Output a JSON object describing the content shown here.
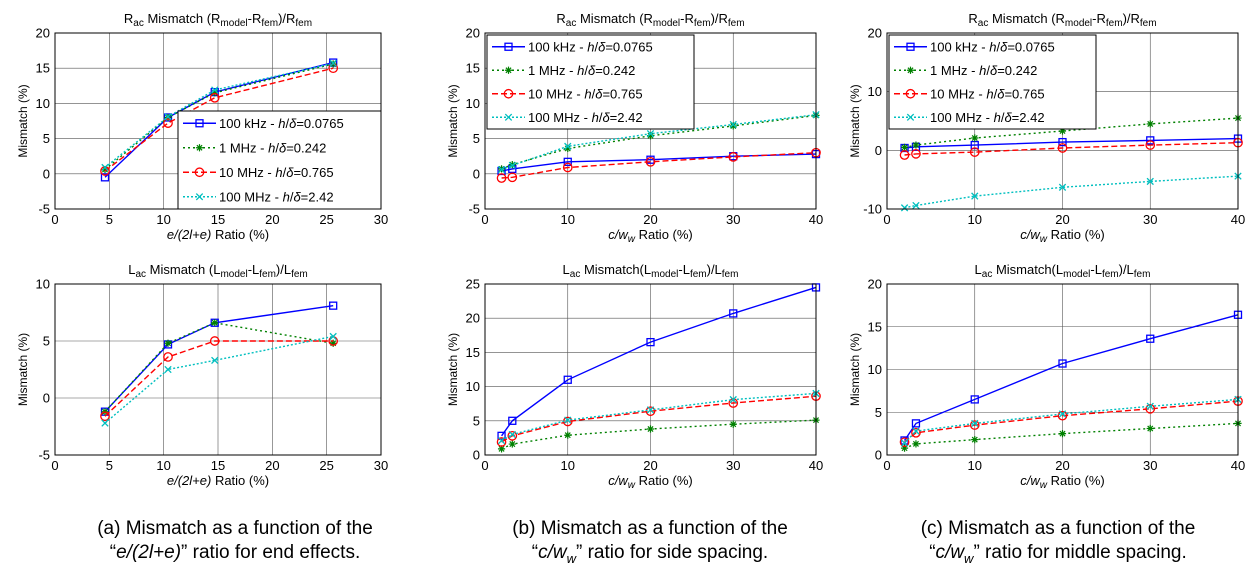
{
  "series_names": [
    "100 kHz",
    "1 MHz",
    "10 MHz",
    "100 MHz"
  ],
  "series_params": [
    "=0.0765",
    "=0.242",
    "=0.765",
    "=2.42"
  ],
  "legend_prefix": "- ",
  "legend_h": "h",
  "legend_slash": "/",
  "legend_delta": "δ",
  "series_colors": [
    "#0000ff",
    "#008000",
    "#ff0000",
    "#00bfbf"
  ],
  "series_markers": [
    "square",
    "star",
    "circle",
    "x"
  ],
  "series_dashes": [
    "",
    "2,3",
    "6,3",
    "2,2"
  ],
  "titles": {
    "r_main": "R",
    "r_sub1": "ac",
    "r_mid": " Mismatch (R",
    "r_sub2": "model",
    "r_sep": "-R",
    "r_sub3": "fem",
    "r_tail": ")/R",
    "r_sub4": "fem",
    "l_main": "L",
    "l_sub1": "ac",
    "l_mid_a": " Mismatch (L",
    "l_mid_bc": " Mismatch(L",
    "l_sub2": "model",
    "l_sep": "-L",
    "l_sub3": "fem",
    "l_tail": ")/L",
    "l_sub4": "fem"
  },
  "ylabel": "Mismatch (%)",
  "xlabel_a_italic": "e/(2l+e)",
  "xlabel_a_tail": " Ratio (%)",
  "xlabel_bc_c": "c/w",
  "xlabel_bc_sub": "w",
  "xlabel_bc_tail": " Ratio (%)",
  "captions": {
    "a": {
      "line1": "(a) Mismatch as a function of the",
      "line2_pre": "“",
      "line2_italic": "e/(2l+e)",
      "line2_post": "” ratio for end effects."
    },
    "b": {
      "line1": "(b) Mismatch as a function of the",
      "line2_pre": "“",
      "line2_italic": "c/w",
      "line2_sub": "w",
      "line2_post": "” ratio for side spacing."
    },
    "c": {
      "line1": "(c) Mismatch as a function of the",
      "line2_pre": "“",
      "line2_italic": "c/w",
      "line2_sub": "w",
      "line2_post": "” ratio for middle spacing."
    }
  },
  "chart_data": [
    {
      "id": "a-top",
      "type": "line",
      "xlabel": "e/(2l+e) Ratio (%)",
      "ylabel": "Mismatch (%)",
      "xlim": [
        0,
        30
      ],
      "ylim": [
        -5,
        20
      ],
      "xticks": [
        0,
        5,
        10,
        15,
        20,
        25,
        30
      ],
      "yticks": [
        -5,
        0,
        5,
        10,
        15,
        20
      ],
      "grid": true,
      "legend": "lower-right",
      "x": [
        4.6,
        10.4,
        14.7,
        25.6
      ],
      "series": [
        {
          "name": "100 kHz - h/δ=0.0765",
          "values": [
            -0.5,
            8.0,
            11.6,
            15.8
          ]
        },
        {
          "name": "1 MHz - h/δ=0.242",
          "values": [
            0.6,
            8.0,
            11.5,
            15.6
          ]
        },
        {
          "name": "10 MHz - h/δ=0.765",
          "values": [
            0.4,
            7.2,
            10.8,
            15.0
          ]
        },
        {
          "name": "100 MHz - h/δ=2.42",
          "values": [
            0.9,
            8.1,
            11.9,
            15.7
          ]
        }
      ]
    },
    {
      "id": "b-top",
      "type": "line",
      "xlabel": "c/w_w Ratio (%)",
      "ylabel": "Mismatch (%)",
      "xlim": [
        0,
        40
      ],
      "ylim": [
        -5,
        20
      ],
      "xticks": [
        0,
        10,
        20,
        30,
        40
      ],
      "yticks": [
        -5,
        0,
        5,
        10,
        15,
        20
      ],
      "grid": true,
      "legend": "top-left",
      "x": [
        2,
        3.3,
        10,
        20,
        30,
        40
      ],
      "series": [
        {
          "name": "100 kHz - h/δ=0.0765",
          "values": [
            0.4,
            0.7,
            1.7,
            2.0,
            2.5,
            2.8
          ]
        },
        {
          "name": "1 MHz - h/δ=0.242",
          "values": [
            0.7,
            1.3,
            3.6,
            5.4,
            6.8,
            8.3
          ]
        },
        {
          "name": "10 MHz - h/δ=0.765",
          "values": [
            -0.6,
            -0.5,
            0.9,
            1.7,
            2.4,
            3.0
          ]
        },
        {
          "name": "100 MHz - h/δ=2.42",
          "values": [
            0.6,
            1.2,
            3.9,
            5.7,
            7.0,
            8.4
          ]
        }
      ]
    },
    {
      "id": "c-top",
      "type": "line",
      "xlabel": "c/w_w Ratio (%)",
      "ylabel": "Mismatch (%)",
      "xlim": [
        0,
        40
      ],
      "ylim": [
        -10,
        20
      ],
      "xticks": [
        0,
        10,
        20,
        30,
        40
      ],
      "yticks": [
        -10,
        0,
        10,
        20
      ],
      "grid": true,
      "legend": "top-left",
      "x": [
        2,
        3.3,
        10,
        20,
        30,
        40
      ],
      "series": [
        {
          "name": "100 kHz - h/δ=0.0765",
          "values": [
            0.4,
            0.6,
            0.9,
            1.4,
            1.7,
            2.0
          ]
        },
        {
          "name": "1 MHz - h/δ=0.242",
          "values": [
            0.5,
            0.9,
            2.1,
            3.3,
            4.5,
            5.5
          ]
        },
        {
          "name": "10 MHz - h/δ=0.765",
          "values": [
            -0.8,
            -0.6,
            -0.3,
            0.4,
            0.9,
            1.3
          ]
        },
        {
          "name": "100 MHz - h/δ=2.42",
          "values": [
            -9.8,
            -9.4,
            -7.8,
            -6.3,
            -5.3,
            -4.4
          ]
        }
      ]
    },
    {
      "id": "a-bot",
      "type": "line",
      "xlabel": "e/(2l+e) Ratio (%)",
      "ylabel": "Mismatch (%)",
      "xlim": [
        0,
        30
      ],
      "ylim": [
        -5,
        10
      ],
      "xticks": [
        0,
        5,
        10,
        15,
        20,
        25,
        30
      ],
      "yticks": [
        -5,
        0,
        5,
        10
      ],
      "grid": true,
      "legend": "none",
      "x": [
        4.6,
        10.4,
        14.7,
        25.6
      ],
      "series": [
        {
          "name": "100 kHz - h/δ=0.0765",
          "values": [
            -1.2,
            4.7,
            6.6,
            8.1
          ]
        },
        {
          "name": "1 MHz - h/δ=0.242",
          "values": [
            -1.2,
            4.8,
            6.6,
            4.8
          ]
        },
        {
          "name": "10 MHz - h/δ=0.765",
          "values": [
            -1.6,
            3.6,
            5.0,
            5.0
          ]
        },
        {
          "name": "100 MHz - h/δ=2.42",
          "values": [
            -2.2,
            2.5,
            3.3,
            5.4
          ]
        }
      ]
    },
    {
      "id": "b-bot",
      "type": "line",
      "xlabel": "c/w_w Ratio (%)",
      "ylabel": "Mismatch (%)",
      "xlim": [
        0,
        40
      ],
      "ylim": [
        0,
        25
      ],
      "xticks": [
        0,
        10,
        20,
        30,
        40
      ],
      "yticks": [
        0,
        5,
        10,
        15,
        20,
        25
      ],
      "grid": true,
      "legend": "none",
      "x": [
        2,
        3.3,
        10,
        20,
        30,
        40
      ],
      "series": [
        {
          "name": "100 kHz - h/δ=0.0765",
          "values": [
            2.8,
            5.0,
            11.0,
            16.5,
            20.7,
            24.5
          ]
        },
        {
          "name": "1 MHz - h/δ=0.242",
          "values": [
            0.9,
            1.6,
            2.9,
            3.8,
            4.5,
            5.1
          ]
        },
        {
          "name": "10 MHz - h/δ=0.765",
          "values": [
            1.9,
            2.8,
            4.9,
            6.4,
            7.6,
            8.6
          ]
        },
        {
          "name": "100 MHz - h/δ=2.42",
          "values": [
            2.1,
            3.0,
            5.1,
            6.6,
            8.1,
            9.0
          ]
        }
      ]
    },
    {
      "id": "c-bot",
      "type": "line",
      "xlabel": "c/w_w Ratio (%)",
      "ylabel": "Mismatch (%)",
      "xlim": [
        0,
        40
      ],
      "ylim": [
        0,
        20
      ],
      "xticks": [
        0,
        10,
        20,
        30,
        40
      ],
      "yticks": [
        0,
        5,
        10,
        15,
        20
      ],
      "grid": true,
      "legend": "none",
      "x": [
        2,
        3.3,
        10,
        20,
        30,
        40
      ],
      "series": [
        {
          "name": "100 kHz - h/δ=0.0765",
          "values": [
            1.7,
            3.7,
            6.5,
            10.7,
            13.6,
            16.4
          ]
        },
        {
          "name": "1 MHz - h/δ=0.242",
          "values": [
            0.8,
            1.3,
            1.8,
            2.5,
            3.1,
            3.7
          ]
        },
        {
          "name": "10 MHz - h/δ=0.765",
          "values": [
            1.5,
            2.6,
            3.5,
            4.6,
            5.4,
            6.3
          ]
        },
        {
          "name": "100 MHz - h/δ=2.42",
          "values": [
            1.4,
            2.8,
            3.7,
            4.8,
            5.7,
            6.5
          ]
        }
      ]
    }
  ]
}
